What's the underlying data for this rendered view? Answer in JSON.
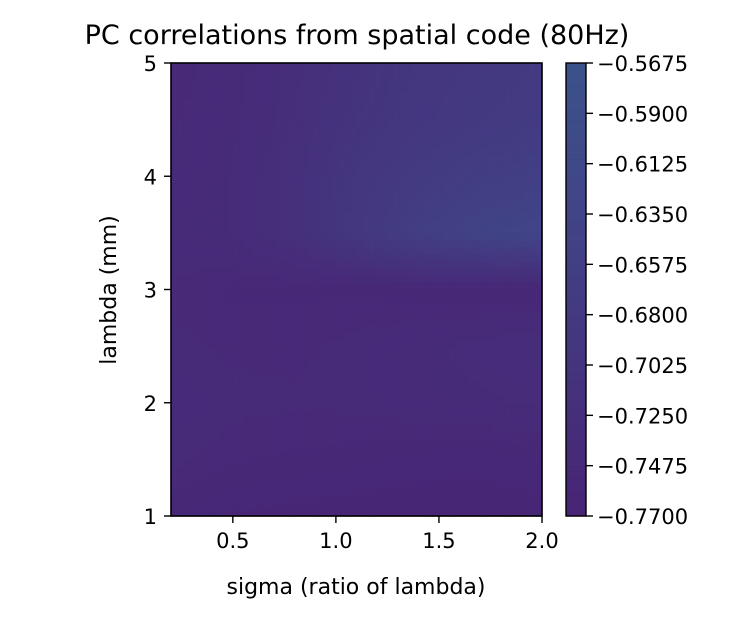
{
  "chart_data": {
    "type": "heatmap",
    "title": "PC correlations from spatial code (80Hz)",
    "xlabel": "sigma (ratio of lambda)",
    "ylabel": "lambda (mm)",
    "xlim": [
      0.2,
      2.0
    ],
    "ylim": [
      1,
      5
    ],
    "x_ticks": [
      0.5,
      1.0,
      1.5,
      2.0
    ],
    "x_tick_labels": [
      "0.5",
      "1.0",
      "1.5",
      "2.0"
    ],
    "y_ticks": [
      1,
      2,
      3,
      4,
      5
    ],
    "y_tick_labels": [
      "1",
      "2",
      "3",
      "4",
      "5"
    ],
    "colorbar": {
      "min": -0.77,
      "max": -0.5675,
      "ticks": [
        -0.5675,
        -0.59,
        -0.6125,
        -0.635,
        -0.6575,
        -0.68,
        -0.7025,
        -0.725,
        -0.7475,
        -0.77
      ],
      "tick_labels": [
        "−0.5675",
        "−0.5900",
        "−0.6125",
        "−0.6350",
        "−0.6575",
        "−0.6800",
        "−0.7025",
        "−0.7250",
        "−0.7475",
        "−0.7700"
      ],
      "colormap": "viridis"
    },
    "x": [
      0.2,
      0.5,
      0.8,
      1.1,
      1.4,
      1.7,
      2.0
    ],
    "y": [
      1.0,
      1.5,
      2.0,
      2.5,
      3.0,
      3.5,
      4.0,
      4.5,
      5.0
    ],
    "z": [
      [
        -0.755,
        -0.76,
        -0.762,
        -0.763,
        -0.764,
        -0.764,
        -0.762
      ],
      [
        -0.745,
        -0.75,
        -0.752,
        -0.754,
        -0.756,
        -0.757,
        -0.755
      ],
      [
        -0.742,
        -0.745,
        -0.746,
        -0.745,
        -0.742,
        -0.74,
        -0.737
      ],
      [
        -0.745,
        -0.748,
        -0.748,
        -0.745,
        -0.74,
        -0.735,
        -0.732
      ],
      [
        -0.748,
        -0.752,
        -0.752,
        -0.752,
        -0.754,
        -0.756,
        -0.757
      ],
      [
        -0.742,
        -0.738,
        -0.72,
        -0.69,
        -0.66,
        -0.64,
        -0.63
      ],
      [
        -0.745,
        -0.738,
        -0.72,
        -0.695,
        -0.675,
        -0.662,
        -0.655
      ],
      [
        -0.748,
        -0.74,
        -0.725,
        -0.705,
        -0.69,
        -0.68,
        -0.672
      ],
      [
        -0.75,
        -0.742,
        -0.728,
        -0.71,
        -0.695,
        -0.685,
        -0.678
      ]
    ]
  }
}
